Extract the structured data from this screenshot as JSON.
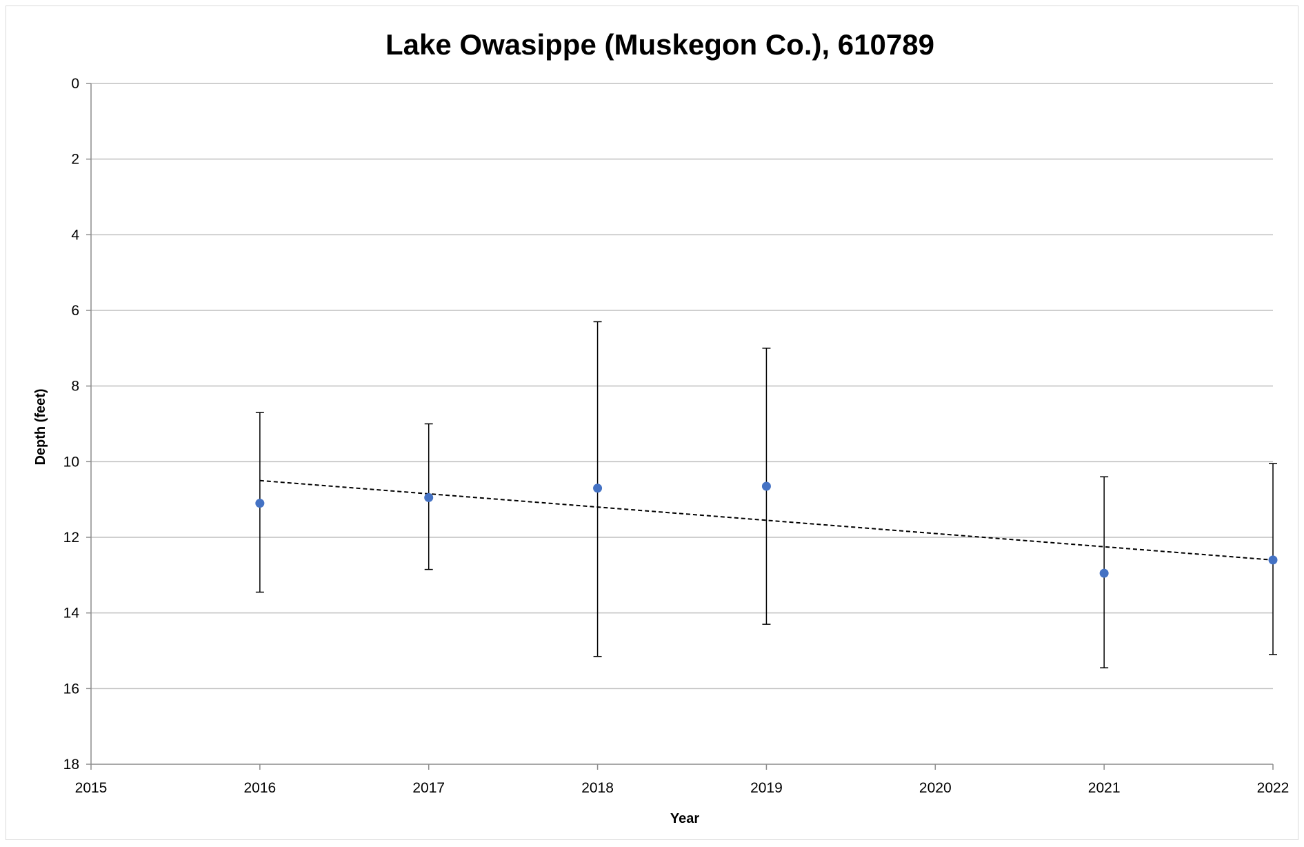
{
  "chart_data": {
    "type": "scatter",
    "title": "Lake Owasippe (Muskegon Co.), 610789",
    "xlabel": "Year",
    "ylabel": "Depth (feet)",
    "xlim": [
      2015,
      2022
    ],
    "ylim": [
      0,
      18
    ],
    "y_axis_reversed": true,
    "x_ticks": [
      "2015",
      "2016",
      "2017",
      "2018",
      "2019",
      "2020",
      "2021",
      "2022"
    ],
    "y_ticks": [
      "0",
      "2",
      "4",
      "6",
      "8",
      "10",
      "12",
      "14",
      "16",
      "18"
    ],
    "grid": "horizontal",
    "legend": "none",
    "marker_color": "#4472C4",
    "series": [
      {
        "x": [
          2016,
          2017,
          2018,
          2019,
          2021,
          2022
        ],
        "y": [
          11.1,
          10.95,
          10.7,
          10.65,
          12.95,
          12.6
        ],
        "error_low": [
          8.7,
          9.0,
          6.3,
          7.0,
          10.4,
          10.05
        ],
        "error_high": [
          13.45,
          12.85,
          15.15,
          14.3,
          15.45,
          15.1
        ]
      }
    ],
    "trendline": {
      "style": "dashed",
      "color": "#000000",
      "x": [
        2016,
        2022
      ],
      "y": [
        10.5,
        12.6
      ]
    }
  }
}
